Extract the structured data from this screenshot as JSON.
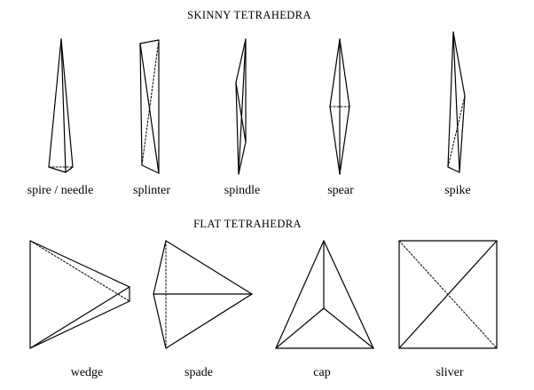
{
  "sections": {
    "skinny": {
      "title": "SKINNY  TETRAHEDRA"
    },
    "flat": {
      "title": "FLAT  TETRAHEDRA"
    }
  },
  "shapes": {
    "spire": "spire / needle",
    "splinter": "splinter",
    "spindle": "spindle",
    "spear": "spear",
    "spike": "spike",
    "wedge": "wedge",
    "spade": "spade",
    "cap": "cap",
    "sliver": "sliver"
  }
}
